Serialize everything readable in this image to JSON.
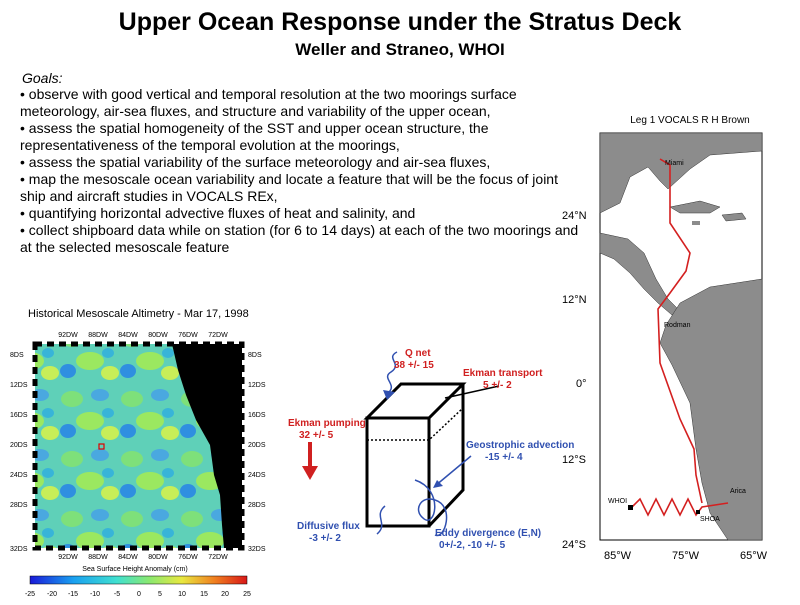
{
  "title": "Upper Ocean Response under the Stratus Deck",
  "subtitle": "Weller and Straneo, WHOI",
  "goals": {
    "heading": "Goals:",
    "items": [
      "• observe with good vertical and temporal resolution at the two moorings surface meteorology, air-sea fluxes, and structure and variability of the upper ocean,",
      "• assess the spatial homogeneity of the SST and upper ocean structure, the representativeness of the temporal evolution at the moorings,",
      "• assess the spatial variability of the surface meteorology and air-sea fluxes,",
      "• map the mesoscale ocean variability and locate a feature that will be the focus of joint ship and aircraft studies in VOCALS REx,",
      "• quantifying horizontal advective fluxes of heat and salinity, and",
      "• collect shipboard data while on station (for 6 to 14 days) at each of the two moorings and at the selected mesoscale feature"
    ]
  },
  "altimetry": {
    "title": "Historical Mesoscale Altimetry - Mar 17, 1998",
    "top_lon_labels": [
      "92DW",
      "88DW",
      "84DW",
      "80DW",
      "76DW",
      "72DW"
    ],
    "bottom_lon_labels": [
      "92DW",
      "88DW",
      "84DW",
      "80DW",
      "76DW",
      "72DW"
    ],
    "left_lat_labels": [
      "8DS",
      "12DS",
      "16DS",
      "20DS",
      "24DS",
      "28DS",
      "32DS"
    ],
    "right_lat_labels": [
      "8DS",
      "12DS",
      "16DS",
      "20DS",
      "24DS",
      "28DS",
      "32DS"
    ],
    "colorbar_title": "Sea Surface Height Anomaly (cm)",
    "colorbar_ticks": [
      "-25",
      "-20",
      "-15",
      "-10",
      "-5",
      "0",
      "5",
      "10",
      "15",
      "20",
      "25"
    ]
  },
  "box": {
    "qnet_label": "Q net",
    "qnet_value": "38 +/- 15",
    "ekman_transport_label": "Ekman transport",
    "ekman_transport_value": "5 +/- 2",
    "ekman_pumping_label": "Ekman pumping",
    "ekman_pumping_value": "32 +/- 5",
    "geostrophic_label": "Geostrophic advection",
    "geostrophic_value": "-15 +/- 4",
    "diffusive_label": "Diffusive flux",
    "diffusive_value": "-3 +/- 2",
    "eddy_label": "Eddy divergence (E,N)",
    "eddy_value": "0+/-2,  -10 +/- 5"
  },
  "route_map": {
    "title": "Leg 1  VOCALS R H Brown",
    "lat_labels": [
      "24°N",
      "12°N",
      "0°",
      "12°S",
      "24°S"
    ],
    "lon_labels": [
      "85°W",
      "75°W",
      "65°W"
    ],
    "places": [
      "Miami",
      "Rodman",
      "Arica",
      "WHOI",
      "SHOA"
    ],
    "colors": {
      "route": "#d42020",
      "land": "#8c8c8c"
    }
  }
}
